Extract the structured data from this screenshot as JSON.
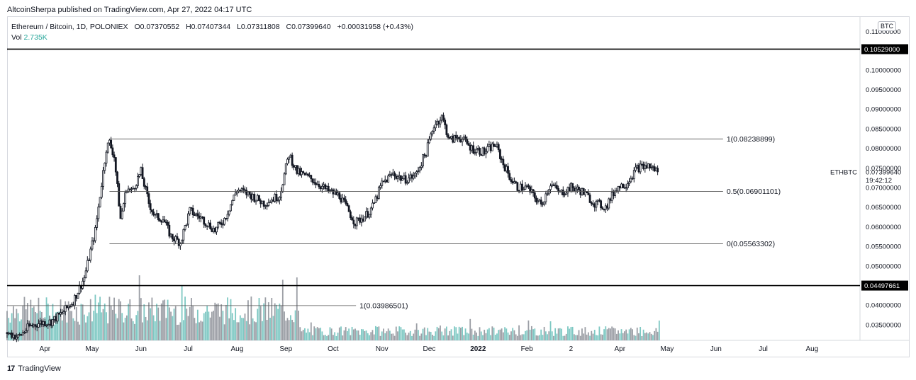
{
  "header": {
    "publisher": "AltcoinSherpa published on TradingView.com, Apr 27, 2022 04:17 UTC"
  },
  "legend": {
    "symbol": "Ethereum / Bitcoin, 1D, POLONIEX",
    "open": "O0.07370552",
    "high": "H0.07407344",
    "low": "L0.07311808",
    "close": "C0.07399640",
    "change": "+0.00031958 (+0.43%)",
    "vol_label": "Vol",
    "vol_value": "2.735K"
  },
  "footer": {
    "logo_text": "17",
    "brand": "TradingView"
  },
  "price_axis": {
    "unit": "BTC",
    "ticks": [
      "0.10000000",
      "0.09500000",
      "0.09000000",
      "0.08500000",
      "0.08000000",
      "0.07500000",
      "0.07000000",
      "0.06500000",
      "0.06000000",
      "0.05500000",
      "0.05000000",
      "0.04500000",
      "0.04000000",
      "0.03500000"
    ],
    "top_tick_partial": "0.11000000",
    "last_price_symbol": "ETHBTC",
    "last_price": "0.07399640",
    "countdown": "19:42:12"
  },
  "colors": {
    "up": "#131722",
    "down": "#131722",
    "vol_up": "#7ec8c3",
    "vol_down": "#9b9ea5",
    "grid": "#e8e8ec",
    "text": "#131722"
  },
  "chart_data": {
    "type": "candlestick",
    "symbol": "ETHBTC",
    "timeframe": "1D",
    "exchange": "POLONIEX",
    "x_range": [
      "2021-03-08",
      "2022-08-31"
    ],
    "y_range": [
      0.031,
      0.1135
    ],
    "x_tick_labels": [
      {
        "label": "Apr",
        "date": "2021-04-01"
      },
      {
        "label": "May",
        "date": "2021-05-01"
      },
      {
        "label": "Jun",
        "date": "2021-06-01"
      },
      {
        "label": "Jul",
        "date": "2021-07-01"
      },
      {
        "label": "Aug",
        "date": "2021-08-01"
      },
      {
        "label": "Sep",
        "date": "2021-09-01"
      },
      {
        "label": "Oct",
        "date": "2021-10-01"
      },
      {
        "label": "Nov",
        "date": "2021-11-01"
      },
      {
        "label": "Dec",
        "date": "2021-12-01"
      },
      {
        "label": "2022",
        "date": "2022-01-01"
      },
      {
        "label": "Feb",
        "date": "2022-02-01"
      },
      {
        "label": "2",
        "date": "2022-03-01"
      },
      {
        "label": "Apr",
        "date": "2022-04-01"
      },
      {
        "label": "May",
        "date": "2022-05-01"
      },
      {
        "label": "Jun",
        "date": "2022-06-01"
      },
      {
        "label": "Jul",
        "date": "2022-07-01"
      },
      {
        "label": "Aug",
        "date": "2022-08-01"
      }
    ],
    "horizontal_lines": [
      {
        "price": 0.10529,
        "label": "0.10529000",
        "style": "thick"
      },
      {
        "price": 0.04497661,
        "label": "0.04497661",
        "style": "thick"
      }
    ],
    "fib_levels": [
      {
        "price": 0.08238899,
        "label": "1(0.08238899)",
        "from": "2021-05-12",
        "to": "2022-04-26"
      },
      {
        "price": 0.06901101,
        "label": "0.5(0.06901101)",
        "from": "2021-05-12",
        "to": "2022-04-26"
      },
      {
        "price": 0.05563302,
        "label": "0(0.05563302)",
        "from": "2021-05-12",
        "to": "2022-04-26"
      },
      {
        "price": 0.03986501,
        "label": "1(0.03986501)",
        "from": "2021-03-08",
        "to": "2021-09-05"
      }
    ],
    "series": [
      {
        "name": "ETHBTC",
        "x": [
          "2021-03-08",
          "2021-03-15",
          "2021-03-22",
          "2021-03-29",
          "2021-04-05",
          "2021-04-12",
          "2021-04-19",
          "2021-04-26",
          "2021-05-03",
          "2021-05-07",
          "2021-05-10",
          "2021-05-12",
          "2021-05-15",
          "2021-05-19",
          "2021-05-23",
          "2021-05-26",
          "2021-06-01",
          "2021-06-06",
          "2021-06-10",
          "2021-06-15",
          "2021-06-20",
          "2021-06-26",
          "2021-07-02",
          "2021-07-10",
          "2021-07-18",
          "2021-07-24",
          "2021-08-01",
          "2021-08-10",
          "2021-08-18",
          "2021-08-28",
          "2021-09-03",
          "2021-09-08",
          "2021-09-18",
          "2021-09-28",
          "2021-10-05",
          "2021-10-15",
          "2021-10-22",
          "2021-10-26",
          "2021-11-01",
          "2021-11-08",
          "2021-11-15",
          "2021-11-22",
          "2021-11-29",
          "2021-12-04",
          "2021-12-09",
          "2021-12-14",
          "2021-12-20",
          "2021-12-28",
          "2022-01-05",
          "2022-01-12",
          "2022-01-17",
          "2022-01-22",
          "2022-01-26",
          "2022-02-01",
          "2022-02-10",
          "2022-02-16",
          "2022-02-22",
          "2022-03-01",
          "2022-03-08",
          "2022-03-16",
          "2022-03-23",
          "2022-03-30",
          "2022-04-05",
          "2022-04-12",
          "2022-04-19",
          "2022-04-26"
        ],
        "close": [
          0.033,
          0.0318,
          0.0345,
          0.0355,
          0.0358,
          0.038,
          0.041,
          0.047,
          0.059,
          0.071,
          0.08,
          0.0815,
          0.078,
          0.062,
          0.07,
          0.069,
          0.074,
          0.066,
          0.0625,
          0.062,
          0.0575,
          0.056,
          0.064,
          0.062,
          0.059,
          0.062,
          0.0695,
          0.068,
          0.066,
          0.068,
          0.0785,
          0.074,
          0.072,
          0.069,
          0.068,
          0.061,
          0.063,
          0.065,
          0.071,
          0.0735,
          0.072,
          0.073,
          0.079,
          0.086,
          0.088,
          0.082,
          0.083,
          0.08,
          0.079,
          0.081,
          0.076,
          0.072,
          0.07,
          0.07,
          0.0655,
          0.071,
          0.0685,
          0.07,
          0.069,
          0.066,
          0.065,
          0.07,
          0.071,
          0.075,
          0.0755,
          0.074
        ]
      }
    ],
    "volume": {
      "name": "Vol",
      "last_value": "2.735K"
    }
  }
}
